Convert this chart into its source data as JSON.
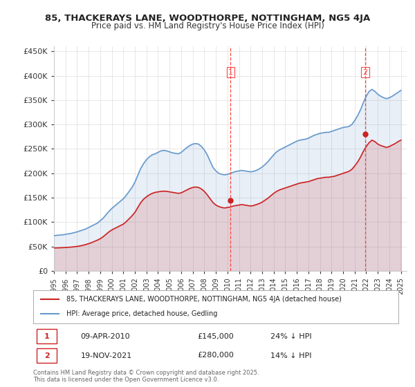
{
  "title1": "85, THACKERAYS LANE, WOODTHORPE, NOTTINGHAM, NG5 4JA",
  "title2": "Price paid vs. HM Land Registry's House Price Index (HPI)",
  "ylabel_ticks": [
    "£0",
    "£50K",
    "£100K",
    "£150K",
    "£200K",
    "£250K",
    "£300K",
    "£350K",
    "£400K",
    "£450K"
  ],
  "ytick_vals": [
    0,
    50000,
    100000,
    150000,
    200000,
    250000,
    300000,
    350000,
    400000,
    450000
  ],
  "ylim": [
    0,
    460000
  ],
  "xlim_start": 1995.0,
  "xlim_end": 2025.5,
  "hpi_color": "#6699cc",
  "price_color": "#cc2222",
  "dashed_color": "#ff4444",
  "background_color": "#ffffff",
  "grid_color": "#dddddd",
  "legend1": "85, THACKERAYS LANE, WOODTHORPE, NOTTINGHAM, NG5 4JA (detached house)",
  "legend2": "HPI: Average price, detached house, Gedling",
  "annotation1_label": "1",
  "annotation1_date": "09-APR-2010",
  "annotation1_price": "£145,000",
  "annotation1_hpi": "24% ↓ HPI",
  "annotation2_label": "2",
  "annotation2_date": "19-NOV-2021",
  "annotation2_price": "£280,000",
  "annotation2_hpi": "14% ↓ HPI",
  "footnote": "Contains HM Land Registry data © Crown copyright and database right 2025.\nThis data is licensed under the Open Government Licence v3.0.",
  "hpi_years": [
    1995.0,
    1995.25,
    1995.5,
    1995.75,
    1996.0,
    1996.25,
    1996.5,
    1996.75,
    1997.0,
    1997.25,
    1997.5,
    1997.75,
    1998.0,
    1998.25,
    1998.5,
    1998.75,
    1999.0,
    1999.25,
    1999.5,
    1999.75,
    2000.0,
    2000.25,
    2000.5,
    2000.75,
    2001.0,
    2001.25,
    2001.5,
    2001.75,
    2002.0,
    2002.25,
    2002.5,
    2002.75,
    2003.0,
    2003.25,
    2003.5,
    2003.75,
    2004.0,
    2004.25,
    2004.5,
    2004.75,
    2005.0,
    2005.25,
    2005.5,
    2005.75,
    2006.0,
    2006.25,
    2006.5,
    2006.75,
    2007.0,
    2007.25,
    2007.5,
    2007.75,
    2008.0,
    2008.25,
    2008.5,
    2008.75,
    2009.0,
    2009.25,
    2009.5,
    2009.75,
    2010.0,
    2010.25,
    2010.5,
    2010.75,
    2011.0,
    2011.25,
    2011.5,
    2011.75,
    2012.0,
    2012.25,
    2012.5,
    2012.75,
    2013.0,
    2013.25,
    2013.5,
    2013.75,
    2014.0,
    2014.25,
    2014.5,
    2014.75,
    2015.0,
    2015.25,
    2015.5,
    2015.75,
    2016.0,
    2016.25,
    2016.5,
    2016.75,
    2017.0,
    2017.25,
    2017.5,
    2017.75,
    2018.0,
    2018.25,
    2018.5,
    2018.75,
    2019.0,
    2019.25,
    2019.5,
    2019.75,
    2020.0,
    2020.25,
    2020.5,
    2020.75,
    2021.0,
    2021.25,
    2021.5,
    2021.75,
    2022.0,
    2022.25,
    2022.5,
    2022.75,
    2023.0,
    2023.25,
    2023.5,
    2023.75,
    2024.0,
    2024.25,
    2024.5,
    2024.75,
    2025.0
  ],
  "hpi_values": [
    72000,
    73000,
    73500,
    74000,
    75000,
    76000,
    77000,
    78500,
    80000,
    82000,
    84000,
    86000,
    89000,
    92000,
    95000,
    98000,
    103000,
    108000,
    115000,
    122000,
    128000,
    133000,
    138000,
    143000,
    148000,
    155000,
    163000,
    171000,
    182000,
    196000,
    210000,
    220000,
    228000,
    234000,
    238000,
    240000,
    243000,
    246000,
    247000,
    246000,
    244000,
    242000,
    241000,
    240000,
    243000,
    248000,
    253000,
    257000,
    260000,
    261000,
    260000,
    255000,
    248000,
    238000,
    225000,
    212000,
    205000,
    200000,
    198000,
    197000,
    198000,
    200000,
    202000,
    204000,
    205000,
    206000,
    205000,
    204000,
    203000,
    204000,
    206000,
    209000,
    213000,
    218000,
    224000,
    231000,
    238000,
    244000,
    248000,
    251000,
    254000,
    257000,
    260000,
    263000,
    266000,
    268000,
    269000,
    270000,
    272000,
    275000,
    278000,
    280000,
    282000,
    283000,
    284000,
    284000,
    286000,
    288000,
    290000,
    292000,
    294000,
    295000,
    296000,
    300000,
    308000,
    318000,
    330000,
    345000,
    358000,
    368000,
    372000,
    368000,
    362000,
    358000,
    355000,
    353000,
    355000,
    358000,
    362000,
    366000,
    370000
  ],
  "price_years": [
    1995.0,
    1995.25,
    1995.5,
    1995.75,
    1996.0,
    1996.25,
    1996.5,
    1996.75,
    1997.0,
    1997.25,
    1997.5,
    1997.75,
    1998.0,
    1998.25,
    1998.5,
    1998.75,
    1999.0,
    1999.25,
    1999.5,
    1999.75,
    2000.0,
    2000.25,
    2000.5,
    2000.75,
    2001.0,
    2001.25,
    2001.5,
    2001.75,
    2002.0,
    2002.25,
    2002.5,
    2002.75,
    2003.0,
    2003.25,
    2003.5,
    2003.75,
    2004.0,
    2004.25,
    2004.5,
    2004.75,
    2005.0,
    2005.25,
    2005.5,
    2005.75,
    2006.0,
    2006.25,
    2006.5,
    2006.75,
    2007.0,
    2007.25,
    2007.5,
    2007.75,
    2008.0,
    2008.25,
    2008.5,
    2008.75,
    2009.0,
    2009.25,
    2009.5,
    2009.75,
    2010.0,
    2010.25,
    2010.5,
    2010.75,
    2011.0,
    2011.25,
    2011.5,
    2011.75,
    2012.0,
    2012.25,
    2012.5,
    2012.75,
    2013.0,
    2013.25,
    2013.5,
    2013.75,
    2014.0,
    2014.25,
    2014.5,
    2014.75,
    2015.0,
    2015.25,
    2015.5,
    2015.75,
    2016.0,
    2016.25,
    2016.5,
    2016.75,
    2017.0,
    2017.25,
    2017.5,
    2017.75,
    2018.0,
    2018.25,
    2018.5,
    2018.75,
    2019.0,
    2019.25,
    2019.5,
    2019.75,
    2020.0,
    2020.25,
    2020.5,
    2020.75,
    2021.0,
    2021.25,
    2021.5,
    2021.75,
    2022.0,
    2022.25,
    2022.5,
    2022.75,
    2023.0,
    2023.25,
    2023.5,
    2023.75,
    2024.0,
    2024.25,
    2024.5,
    2024.75,
    2025.0
  ],
  "price_values": [
    47000,
    47200,
    47400,
    47700,
    48000,
    48400,
    48900,
    49500,
    50200,
    51200,
    52500,
    54000,
    56000,
    58000,
    60500,
    63000,
    66000,
    70000,
    75000,
    80000,
    84000,
    87000,
    90000,
    93000,
    96000,
    101000,
    107000,
    113000,
    120000,
    130000,
    140000,
    147000,
    152000,
    156000,
    159000,
    161000,
    162000,
    163000,
    163500,
    163000,
    162000,
    161000,
    160000,
    159000,
    160000,
    163000,
    166000,
    169000,
    171000,
    172000,
    171000,
    168000,
    163000,
    156000,
    148000,
    140000,
    135000,
    132000,
    130000,
    129000,
    130000,
    131000,
    133000,
    134000,
    135000,
    136000,
    135000,
    134000,
    133000,
    134000,
    136000,
    138000,
    141000,
    145000,
    149000,
    154000,
    159000,
    163000,
    166000,
    168000,
    170000,
    172000,
    174000,
    176000,
    178000,
    180000,
    181000,
    182000,
    183000,
    185000,
    187000,
    189000,
    190000,
    191000,
    192000,
    192000,
    193000,
    194000,
    196000,
    198000,
    200000,
    202000,
    204000,
    208000,
    215000,
    223000,
    233000,
    245000,
    255000,
    263000,
    268000,
    265000,
    260000,
    257000,
    255000,
    253000,
    255000,
    258000,
    261000,
    265000,
    268000
  ],
  "marker1_x": 2010.27,
  "marker1_y": 145000,
  "marker2_x": 2021.9,
  "marker2_y": 280000,
  "vline1_x": 2010.27,
  "vline2_x": 2021.9,
  "xtick_years": [
    1995,
    1996,
    1997,
    1998,
    1999,
    2000,
    2001,
    2002,
    2003,
    2004,
    2005,
    2006,
    2007,
    2008,
    2009,
    2010,
    2011,
    2012,
    2013,
    2014,
    2015,
    2016,
    2017,
    2018,
    2019,
    2020,
    2021,
    2022,
    2023,
    2024,
    2025
  ]
}
